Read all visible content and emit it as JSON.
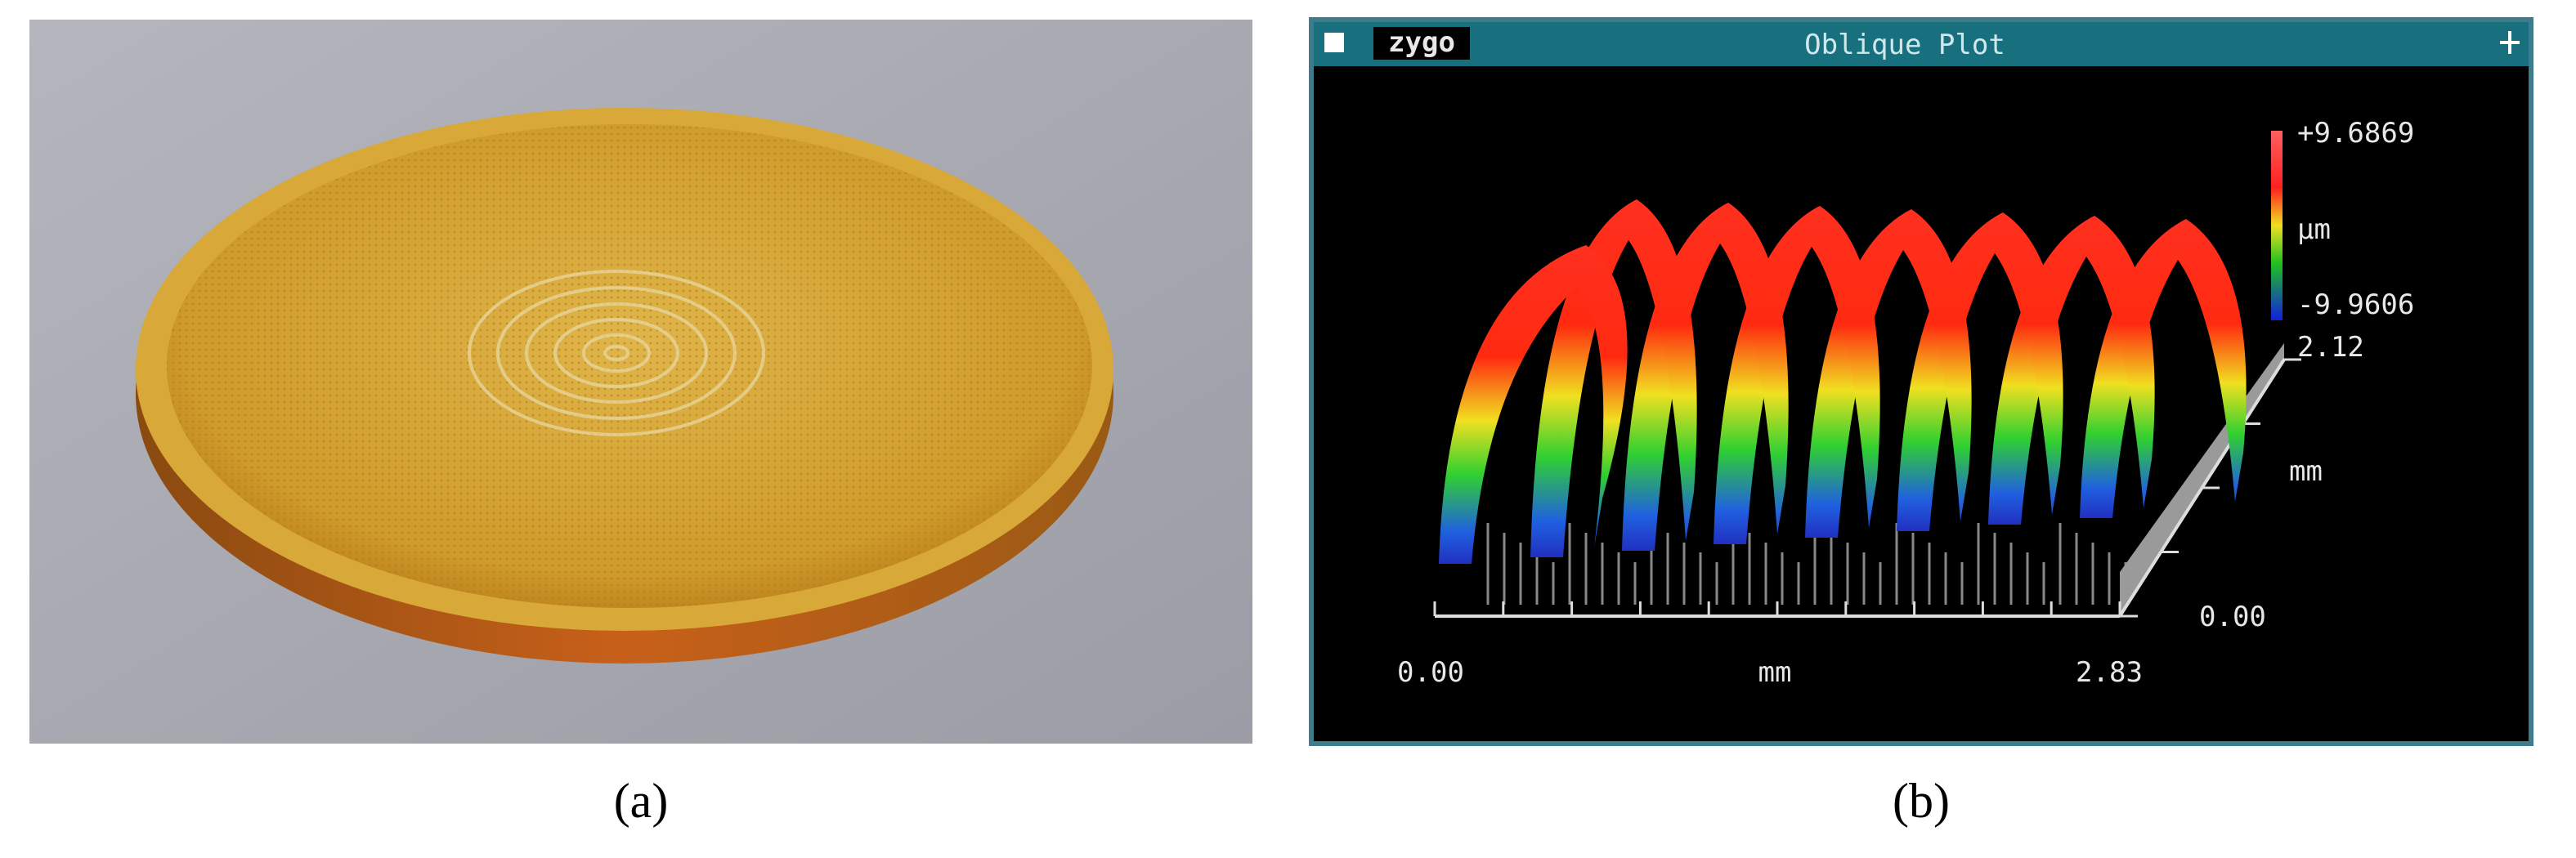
{
  "panel_a": {
    "caption": "(a)"
  },
  "panel_b": {
    "caption": "(b)",
    "window": {
      "brand": "zygo",
      "title": "Oblique Plot"
    },
    "color_scale": {
      "max": "+9.6869",
      "unit": "µm",
      "min": "-9.9606"
    },
    "y_axis": {
      "max": "2.12",
      "unit": "mm",
      "min": "0.00"
    },
    "x_axis": {
      "min": "0.00",
      "unit": "mm",
      "max": "2.83"
    }
  }
}
